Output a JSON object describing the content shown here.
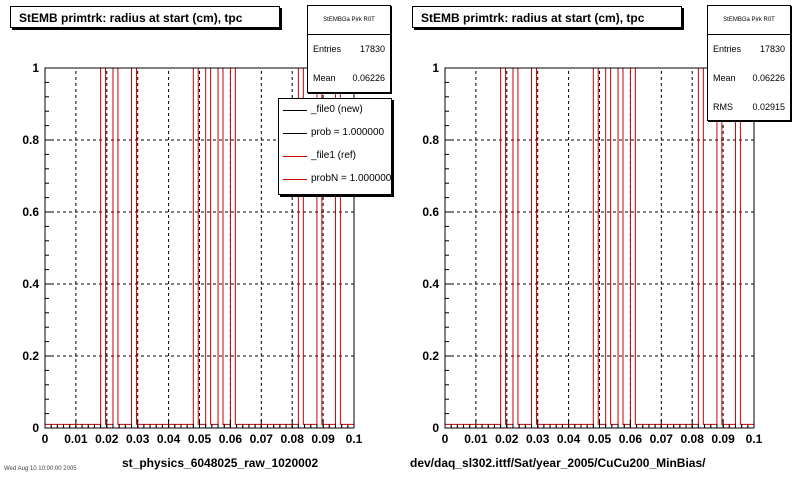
{
  "left_panel": {
    "title": "StEMB primtrk: radius at start (cm), tpc",
    "stats": {
      "name": "StEMBGa Pirk R0T",
      "entries_label": "Entries",
      "entries": "17830",
      "mean_label": "Mean",
      "mean": "0.06226"
    },
    "legend": [
      {
        "label": "_file0 (new)",
        "color": "#000000"
      },
      {
        "label": "prob = 1.000000",
        "color": "#000000"
      },
      {
        "label": "_file1 (ref)",
        "color": "#cc0000"
      },
      {
        "label": "probN = 1.000000",
        "color": "#cc0000"
      }
    ],
    "footer": "st_physics_6048025_raw_1020002"
  },
  "right_panel": {
    "title": "StEMB primtrk: radius at start (cm), tpc",
    "stats": {
      "name": "StEMBGa Pirk R0T",
      "entries_label": "Entries",
      "entries": "17830",
      "mean_label": "Mean",
      "mean": "0.06226",
      "rms_label": "RMS",
      "rms": "0.02915"
    },
    "footer": "dev/daq_sl302.ittf/Sat/year_2005/CuCu200_MinBias/"
  },
  "tiny_text": "Wed Aug 10 10:00:00 2005",
  "colors": {
    "hist_line": "#cc0000",
    "axis": "#000000",
    "grid": "#000000"
  },
  "chart_data": [
    {
      "type": "step-histogram",
      "title": "StEMB primtrk: radius at start (cm), tpc",
      "xlim": [
        0,
        0.1
      ],
      "ylim": [
        0,
        1
      ],
      "x_ticks": [
        "0",
        "0.01",
        "0.02",
        "0.03",
        "0.04",
        "0.05",
        "0.06",
        "0.07",
        "0.08",
        "0.09",
        "0.1"
      ],
      "y_ticks": [
        "0",
        "0.2",
        "0.4",
        "0.6",
        "0.8",
        "1"
      ],
      "grid": true,
      "bins": 50,
      "series": [
        {
          "name": "_file1 (ref)",
          "baseline": 0.01,
          "peaks": [
            [
              0.018,
              0.0196
            ],
            [
              0.022,
              0.0236
            ],
            [
              0.028,
              0.0296
            ],
            [
              0.048,
              0.0496
            ],
            [
              0.052,
              0.0536
            ],
            [
              0.056,
              0.0576
            ],
            [
              0.06,
              0.0616
            ],
            [
              0.082,
              0.0836
            ],
            [
              0.088,
              0.0896
            ],
            [
              0.094,
              0.0956
            ]
          ]
        }
      ]
    },
    {
      "type": "step-histogram",
      "title": "StEMB primtrk: radius at start (cm), tpc",
      "xlim": [
        0,
        0.1
      ],
      "ylim": [
        0,
        1
      ],
      "x_ticks": [
        "0",
        "0.01",
        "0.02",
        "0.03",
        "0.04",
        "0.05",
        "0.06",
        "0.07",
        "0.08",
        "0.09",
        "0.1"
      ],
      "y_ticks": [
        "0",
        "0.2",
        "0.4",
        "0.6",
        "0.8",
        "1"
      ],
      "grid": true,
      "bins": 50,
      "series": [
        {
          "name": "_file1 (ref)",
          "baseline": 0.01,
          "peaks": [
            [
              0.018,
              0.0196
            ],
            [
              0.022,
              0.0236
            ],
            [
              0.028,
              0.0296
            ],
            [
              0.048,
              0.0496
            ],
            [
              0.052,
              0.0536
            ],
            [
              0.056,
              0.0576
            ],
            [
              0.06,
              0.0616
            ],
            [
              0.082,
              0.0836
            ],
            [
              0.088,
              0.0896
            ],
            [
              0.094,
              0.0956
            ]
          ]
        }
      ]
    }
  ]
}
